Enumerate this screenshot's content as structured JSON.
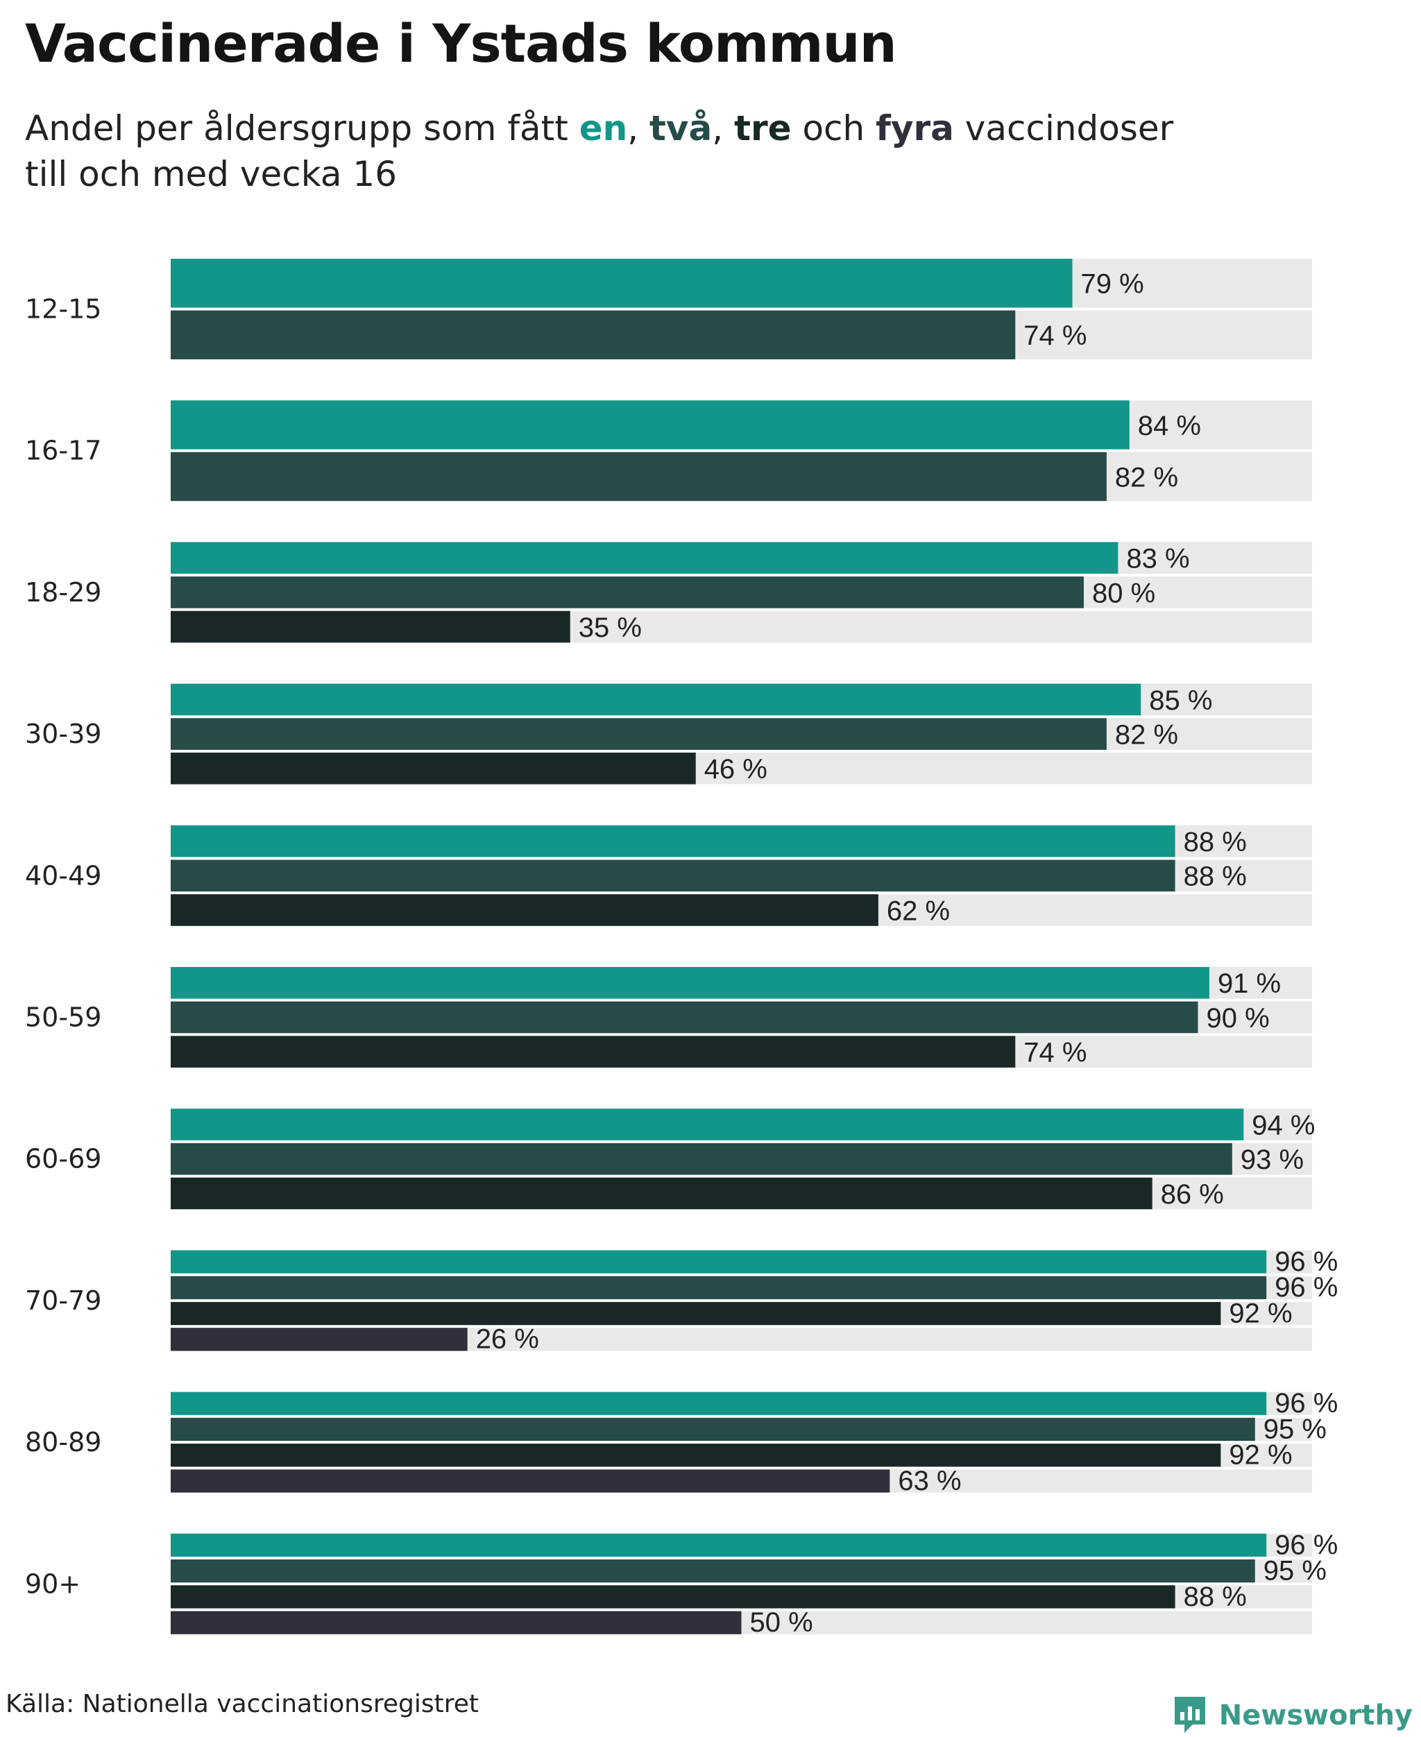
{
  "title": "Vaccinerade i Ystads kommun",
  "subtitle": {
    "pre": "Andel per åldersgrupp som fått ",
    "dose1": "en",
    "sep1": ", ",
    "dose2": "två",
    "sep2": ", ",
    "dose3": "tre",
    "mid": " och ",
    "dose4": "fyra",
    "post": " vaccindoser",
    "line2": "till och med vecka 16"
  },
  "colors": {
    "dose1": "#12968a",
    "dose2": "#264b48",
    "dose3": "#182826",
    "dose4": "#302f3b",
    "track": "#e9e9e9"
  },
  "chart_data": {
    "type": "bar",
    "orientation": "horizontal",
    "xlim": [
      0,
      100
    ],
    "unit": "%",
    "grid": false,
    "legend": "none (series colors in subtitle)",
    "categories": [
      "12-15",
      "16-17",
      "18-29",
      "30-39",
      "40-49",
      "50-59",
      "60-69",
      "70-79",
      "80-89",
      "90+"
    ],
    "series": [
      {
        "name": "en",
        "color": "#12968a",
        "values": [
          79,
          84,
          83,
          85,
          88,
          91,
          94,
          96,
          96,
          96
        ]
      },
      {
        "name": "två",
        "color": "#264b48",
        "values": [
          74,
          82,
          80,
          82,
          88,
          90,
          93,
          96,
          95,
          95
        ]
      },
      {
        "name": "tre",
        "color": "#182826",
        "values": [
          null,
          null,
          35,
          46,
          62,
          74,
          86,
          92,
          92,
          88
        ]
      },
      {
        "name": "fyra",
        "color": "#302f3b",
        "values": [
          null,
          null,
          null,
          null,
          null,
          null,
          null,
          26,
          63,
          50
        ]
      }
    ]
  },
  "source": "Källa: Nationella vaccinationsregistret",
  "brand": {
    "name": "Newsworthy",
    "icon": "newsworthy-logo-icon"
  }
}
